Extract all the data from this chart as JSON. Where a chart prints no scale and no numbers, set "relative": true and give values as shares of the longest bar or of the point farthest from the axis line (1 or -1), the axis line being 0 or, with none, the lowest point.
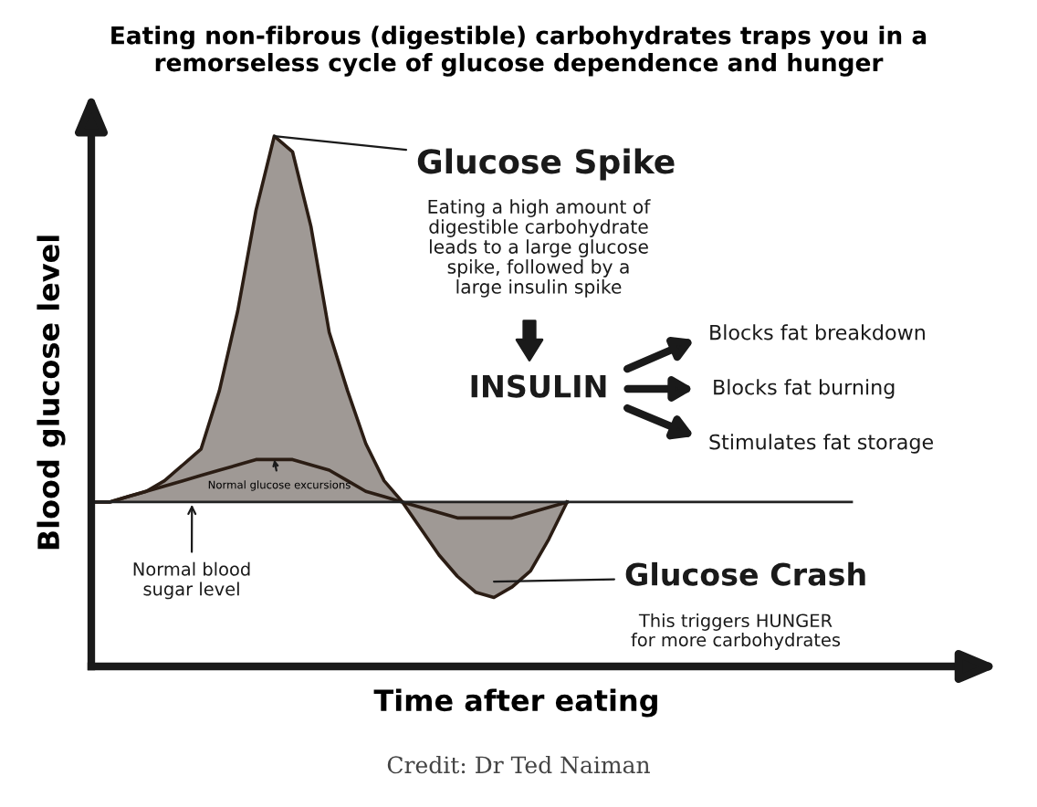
{
  "chart_data": {
    "type": "line",
    "relative": true,
    "title": "Eating non-fibrous (digestible) carbohydrates traps you in a\nremorseless cycle of glucose dependence and hunger",
    "xlabel": "Time after eating",
    "ylabel": "Blood glucose level",
    "categories": [
      null,
      null,
      null,
      null,
      null,
      null,
      null,
      null,
      null,
      null,
      null,
      null,
      null,
      null,
      null,
      null,
      null,
      null,
      null,
      null,
      null,
      null,
      null,
      null,
      null,
      null,
      null
    ],
    "series": [
      {
        "type": "area",
        "color": "#2b1d14",
        "values": [
          0.31,
          0.31,
          0.32,
          0.33,
          0.35,
          0.38,
          0.41,
          0.52,
          0.67,
          0.86,
          1.0,
          0.97,
          0.83,
          0.63,
          0.52,
          0.42,
          0.35,
          0.31,
          0.26,
          0.21,
          0.17,
          0.14,
          0.13,
          0.15,
          0.18,
          0.24,
          0.31
        ]
      },
      {
        "color": "#2b1d14",
        "values": [
          0.31,
          0.31,
          0.32,
          0.33,
          0.34,
          0.35,
          0.36,
          0.37,
          0.38,
          0.39,
          0.39,
          0.39,
          0.38,
          0.37,
          0.35,
          0.33,
          0.32,
          0.31,
          0.3,
          0.29,
          0.28,
          0.28,
          0.28,
          0.28,
          0.29,
          0.3,
          0.31
        ]
      }
    ],
    "ref_lines": [
      {
        "axis": "y",
        "value": 0.31,
        "label": "Normal blood\nsugar level",
        "color": "#222222"
      }
    ],
    "annotations": [
      "Glucose Spike",
      "Eating a high amount of\ndigestible carbohydrate\nleads to a large glucose\nspike, followed by a\nlarge insulin spike",
      "INSULIN",
      "Blocks fat breakdown",
      "Blocks fat burning",
      "Stimulates fat storage",
      "Normal glucose excursions",
      "Glucose Crash",
      "This triggers HUNGER\nfor more carbohydrates",
      "Credit: Dr Ted Naiman"
    ]
  }
}
